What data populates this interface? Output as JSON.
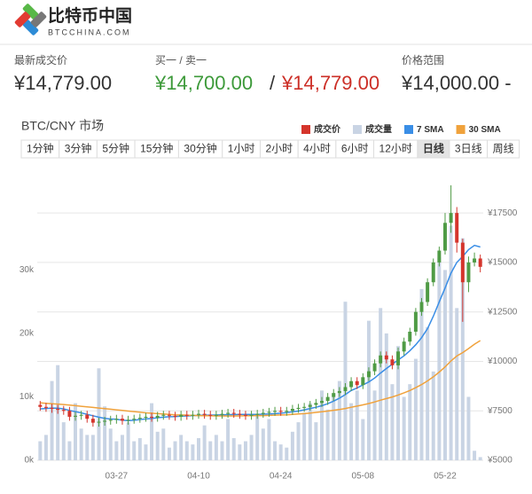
{
  "header": {
    "logo": "比特币中国",
    "domain": "BTCCHINA.COM"
  },
  "stats": [
    {
      "label": "最新成交价",
      "value": "¥14,779.00"
    },
    {
      "label": "买一 / 卖一",
      "bid": "¥14,700.00",
      "separator": "/",
      "ask": "¥14,779.00"
    },
    {
      "label": "价格范围",
      "value": "¥14,000.00 -"
    }
  ],
  "chart_data": {
    "type": "candlestick",
    "title": "BTC/CNY 市场",
    "timeframes": [
      "1分钟",
      "3分钟",
      "5分钟",
      "15分钟",
      "30分钟",
      "1小时",
      "2小时",
      "4小时",
      "6小时",
      "12小时",
      "日线",
      "3日线",
      "周线"
    ],
    "active_timeframe": 10,
    "categories": [
      null,
      null,
      null,
      null,
      null,
      null,
      null,
      null,
      null,
      null,
      null,
      null,
      null,
      "03-27",
      null,
      null,
      null,
      null,
      null,
      null,
      null,
      null,
      null,
      null,
      null,
      null,
      null,
      "04-10",
      null,
      null,
      null,
      null,
      null,
      null,
      null,
      null,
      null,
      null,
      null,
      null,
      null,
      "04-24",
      null,
      null,
      null,
      null,
      null,
      null,
      null,
      null,
      null,
      null,
      null,
      null,
      null,
      "05-08",
      null,
      null,
      null,
      null,
      null,
      null,
      null,
      null,
      null,
      null,
      null,
      null,
      null,
      "05-22",
      null,
      null,
      null,
      null,
      null,
      null
    ],
    "series": [
      {
        "name": "成交价",
        "color": "#d5352c",
        "up_color": "#4f9b45",
        "open": [
          7800,
          7700,
          7650,
          7600,
          7550,
          7500,
          7200,
          7250,
          7300,
          7100,
          6900,
          6950,
          7000,
          7050,
          7100,
          7000,
          7050,
          7100,
          7150,
          7200,
          7150,
          7250,
          7300,
          7250,
          7200,
          7300,
          7250,
          7300,
          7350,
          7300,
          7250,
          7300,
          7350,
          7400,
          7350,
          7300,
          7250,
          7300,
          7350,
          7400,
          7450,
          7500,
          7450,
          7500,
          7600,
          7650,
          7700,
          7800,
          7900,
          8000,
          8200,
          8400,
          8500,
          8700,
          9000,
          8800,
          9200,
          9500,
          9900,
          10300,
          10100,
          9800,
          10500,
          11000,
          11500,
          12500,
          13000,
          14000,
          15000,
          15600,
          17000,
          17500,
          16000,
          14000,
          15000,
          15200
        ],
        "high": [
          8000,
          7900,
          7850,
          7800,
          7750,
          7700,
          7450,
          7500,
          7500,
          7300,
          7150,
          7200,
          7250,
          7300,
          7300,
          7250,
          7300,
          7350,
          7400,
          7400,
          7450,
          7500,
          7500,
          7450,
          7500,
          7500,
          7500,
          7550,
          7550,
          7500,
          7500,
          7550,
          7600,
          7600,
          7550,
          7500,
          7500,
          7550,
          7600,
          7650,
          7700,
          7700,
          7700,
          7800,
          7850,
          7900,
          8000,
          8100,
          8200,
          8400,
          8600,
          8700,
          8900,
          9200,
          9200,
          9400,
          9700,
          10100,
          10500,
          10500,
          10300,
          10700,
          11200,
          11700,
          12700,
          13200,
          14200,
          15200,
          15800,
          17500,
          18900,
          17800,
          16200,
          15300,
          15500,
          15400
        ],
        "low": [
          7500,
          7450,
          7400,
          7350,
          7300,
          7000,
          7000,
          7050,
          6900,
          6700,
          6700,
          6750,
          6800,
          6850,
          6800,
          6800,
          6850,
          6900,
          6950,
          6950,
          6950,
          7050,
          7050,
          7000,
          7000,
          7050,
          7050,
          7100,
          7100,
          7050,
          7050,
          7100,
          7150,
          7150,
          7100,
          7050,
          7050,
          7100,
          7150,
          7200,
          7250,
          7250,
          7250,
          7300,
          7400,
          7450,
          7500,
          7600,
          7700,
          7800,
          8000,
          8200,
          8300,
          8500,
          8600,
          8600,
          9000,
          9300,
          9700,
          9900,
          9600,
          9600,
          10300,
          10800,
          11300,
          12300,
          12800,
          13800,
          14800,
          15400,
          16500,
          15500,
          12000,
          13500,
          14800,
          14500
        ],
        "close": [
          7700,
          7650,
          7600,
          7550,
          7500,
          7200,
          7250,
          7300,
          7100,
          6900,
          6950,
          7000,
          7050,
          7100,
          7000,
          7050,
          7100,
          7150,
          7200,
          7150,
          7250,
          7300,
          7250,
          7200,
          7300,
          7250,
          7300,
          7350,
          7300,
          7250,
          7300,
          7350,
          7400,
          7350,
          7300,
          7250,
          7300,
          7350,
          7400,
          7450,
          7500,
          7450,
          7500,
          7600,
          7650,
          7700,
          7800,
          7900,
          8000,
          8200,
          8400,
          8500,
          8700,
          9000,
          8800,
          9200,
          9500,
          9900,
          10300,
          10100,
          9800,
          10500,
          11000,
          11500,
          12500,
          13000,
          14000,
          15000,
          15600,
          17000,
          17500,
          16000,
          14000,
          15000,
          15200,
          14779
        ]
      },
      {
        "name": "成交量",
        "color": "#c9d4e4",
        "type": "bar",
        "axis": "y2",
        "values": [
          3000,
          4000,
          12500,
          15000,
          6000,
          3000,
          9000,
          5000,
          4000,
          4000,
          14500,
          8500,
          5000,
          3000,
          4000,
          6000,
          3000,
          3500,
          2500,
          9000,
          4500,
          5000,
          2000,
          3000,
          4000,
          3000,
          2500,
          3500,
          5500,
          3000,
          4000,
          3000,
          6500,
          3500,
          2500,
          3000,
          4000,
          7000,
          5000,
          6500,
          3000,
          2500,
          2000,
          4500,
          6000,
          7500,
          9000,
          6000,
          11000,
          8000,
          10500,
          12500,
          25000,
          9000,
          11000,
          6500,
          22000,
          11000,
          24000,
          20000,
          12000,
          18000,
          10000,
          12000,
          16000,
          27000,
          21000,
          14000,
          32000,
          30000,
          37000,
          24000,
          35000,
          10000,
          1500,
          500
        ]
      },
      {
        "name": "7 SMA",
        "color": "#3a8ee6",
        "type": "line",
        "values": [
          7600,
          7620,
          7640,
          7630,
          7600,
          7520,
          7460,
          7400,
          7320,
          7250,
          7180,
          7120,
          7090,
          7070,
          7030,
          7010,
          7020,
          7060,
          7090,
          7110,
          7150,
          7180,
          7200,
          7210,
          7230,
          7240,
          7260,
          7270,
          7280,
          7280,
          7290,
          7300,
          7310,
          7310,
          7320,
          7320,
          7320,
          7320,
          7330,
          7340,
          7360,
          7380,
          7410,
          7450,
          7490,
          7550,
          7620,
          7680,
          7760,
          7860,
          7990,
          8140,
          8320,
          8530,
          8660,
          8810,
          8960,
          9160,
          9410,
          9640,
          9860,
          10070,
          10280,
          10540,
          10840,
          11200,
          11650,
          12280,
          13010,
          13710,
          14460,
          15000,
          15300,
          15650,
          15860,
          15780
        ]
      },
      {
        "name": "30 SMA",
        "color": "#f0a23c",
        "type": "line",
        "values": [
          7900,
          7880,
          7860,
          7840,
          7820,
          7790,
          7760,
          7730,
          7700,
          7670,
          7640,
          7610,
          7580,
          7550,
          7520,
          7490,
          7460,
          7430,
          7400,
          7380,
          7360,
          7340,
          7320,
          7300,
          7290,
          7280,
          7270,
          7260,
          7250,
          7250,
          7240,
          7240,
          7240,
          7240,
          7240,
          7250,
          7250,
          7260,
          7260,
          7270,
          7280,
          7290,
          7300,
          7320,
          7340,
          7360,
          7390,
          7420,
          7450,
          7490,
          7530,
          7570,
          7620,
          7680,
          7740,
          7800,
          7870,
          7950,
          8040,
          8120,
          8200,
          8300,
          8410,
          8530,
          8670,
          8830,
          9010,
          9220,
          9460,
          9720,
          10020,
          10270,
          10440,
          10650,
          10870,
          11050
        ]
      }
    ],
    "ylim": [
      5000,
      19300
    ],
    "yticks": [
      {
        "value": 5000,
        "label": "¥5000"
      },
      {
        "value": 7500,
        "label": "¥7500"
      },
      {
        "value": 10000,
        "label": "¥10000"
      },
      {
        "value": 12500,
        "label": "¥12500"
      },
      {
        "value": 15000,
        "label": "¥15000"
      },
      {
        "value": 17500,
        "label": "¥17500"
      }
    ],
    "y2lim": [
      0,
      44600
    ],
    "y2ticks": [
      {
        "value": 0,
        "label": "0k"
      },
      {
        "value": 10000,
        "label": "10k"
      },
      {
        "value": 20000,
        "label": "20k"
      },
      {
        "value": 30000,
        "label": "30k"
      }
    ],
    "grid": true,
    "legend": "top-right"
  }
}
